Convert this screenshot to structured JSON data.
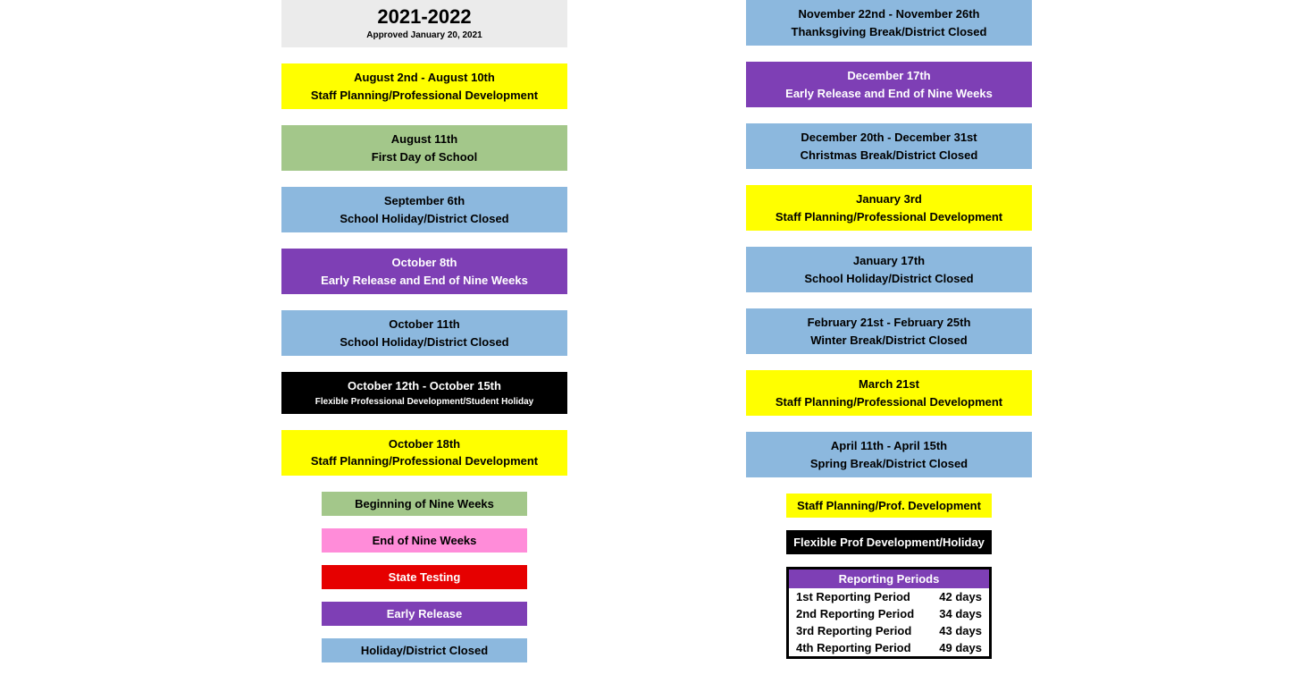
{
  "header": {
    "title": "2021-2022",
    "subtitle": "Approved January 20, 2021"
  },
  "colors": {
    "yellow": "#ffff00",
    "green": "#a3c78a",
    "blue": "#8cb8de",
    "purple": "#7e3fb5",
    "black": "#000000",
    "pink": "#ff8cd9",
    "red": "#e60000",
    "headerGray": "#ebebeb"
  },
  "left_events": [
    {
      "date": "August 2nd - August 10th",
      "desc": "Staff Planning/Professional Development",
      "color": "yellow"
    },
    {
      "date": "August 11th",
      "desc": "First Day of School",
      "color": "green"
    },
    {
      "date": "September 6th",
      "desc": "School Holiday/District Closed",
      "color": "blue"
    },
    {
      "date": "October 8th",
      "desc": "Early Release and End of Nine Weeks",
      "color": "purple"
    },
    {
      "date": "October 11th",
      "desc": "School Holiday/District Closed",
      "color": "blue"
    },
    {
      "date": "October 12th - October 15th",
      "desc": "Flexible Professional Development/Student Holiday",
      "color": "black",
      "small": true
    },
    {
      "date": "October 18th",
      "desc": "Staff Planning/Professional Development",
      "color": "yellow"
    }
  ],
  "right_events": [
    {
      "date": "November 22nd - November 26th",
      "desc": "Thanksgiving Break/District Closed",
      "color": "blue"
    },
    {
      "date": "December 17th",
      "desc": "Early Release and End of Nine Weeks",
      "color": "purple"
    },
    {
      "date": "December 20th - December 31st",
      "desc": "Christmas Break/District Closed",
      "color": "blue"
    },
    {
      "date": "January 3rd",
      "desc": "Staff Planning/Professional Development",
      "color": "yellow"
    },
    {
      "date": "January 17th",
      "desc": "School Holiday/District Closed",
      "color": "blue"
    },
    {
      "date": "February 21st - February 25th",
      "desc": "Winter Break/District Closed",
      "color": "blue"
    },
    {
      "date": "March 21st",
      "desc": "Staff Planning/Professional Development",
      "color": "yellow"
    },
    {
      "date": "April 11th - April 15th",
      "desc": "Spring Break/District Closed",
      "color": "blue"
    }
  ],
  "left_legend": [
    {
      "label": "Beginning of Nine Weeks",
      "color": "green"
    },
    {
      "label": "End of Nine Weeks",
      "color": "pink"
    },
    {
      "label": "State Testing",
      "color": "red"
    },
    {
      "label": "Early Release",
      "color": "purple"
    },
    {
      "label": "Holiday/District Closed",
      "color": "blue"
    }
  ],
  "right_legend": [
    {
      "label": "Staff Planning/Prof. Development",
      "color": "yellow"
    },
    {
      "label": "Flexible Prof Development/Holiday",
      "color": "black"
    }
  ],
  "reporting": {
    "title": "Reporting Periods",
    "rows": [
      {
        "label": "1st Reporting Period",
        "days": "42 days"
      },
      {
        "label": "2nd Reporting Period",
        "days": "34 days"
      },
      {
        "label": "3rd Reporting Period",
        "days": "43 days"
      },
      {
        "label": "4th Reporting Period",
        "days": "49 days"
      }
    ]
  }
}
